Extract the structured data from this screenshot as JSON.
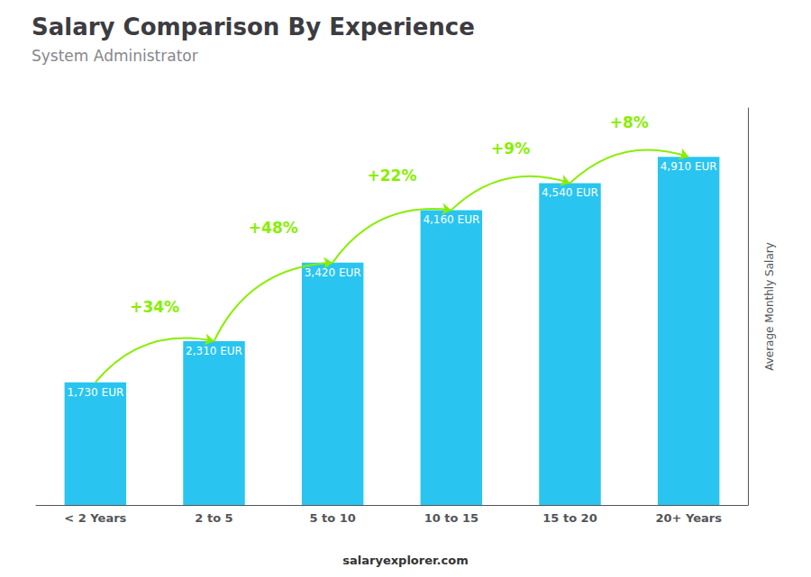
{
  "chart_data": {
    "type": "bar",
    "title": "Salary Comparison By Experience",
    "subtitle": "System Administrator",
    "ylabel": "Average Monthly Salary",
    "categories": [
      "< 2 Years",
      "2 to 5",
      "5 to 10",
      "10 to 15",
      "15 to 20",
      "20+ Years"
    ],
    "values": [
      1730,
      2310,
      3420,
      4160,
      4540,
      4910
    ],
    "value_labels": [
      "1,730 EUR",
      "2,310 EUR",
      "3,420 EUR",
      "4,160 EUR",
      "4,540 EUR",
      "4,910 EUR"
    ],
    "data_labels": true,
    "color": "#29c5f0",
    "ylim": [
      0,
      5600
    ],
    "tick_labels": "x",
    "grid": false,
    "annotations": [
      {
        "text": "+34%",
        "between": [
          "< 2 Years",
          "2 to 5"
        ],
        "color": "#88ee00"
      },
      {
        "text": "+48%",
        "between": [
          "2 to 5",
          "5 to 10"
        ],
        "color": "#88ee00"
      },
      {
        "text": "+22%",
        "between": [
          "5 to 10",
          "10 to 15"
        ],
        "color": "#88ee00"
      },
      {
        "text": "+9%",
        "between": [
          "10 to 15",
          "15 to 20"
        ],
        "color": "#88ee00"
      },
      {
        "text": "+8%",
        "between": [
          "15 to 20",
          "20+ Years"
        ],
        "color": "#88ee00"
      }
    ],
    "footer": [
      "salary",
      "explorer.com"
    ]
  }
}
